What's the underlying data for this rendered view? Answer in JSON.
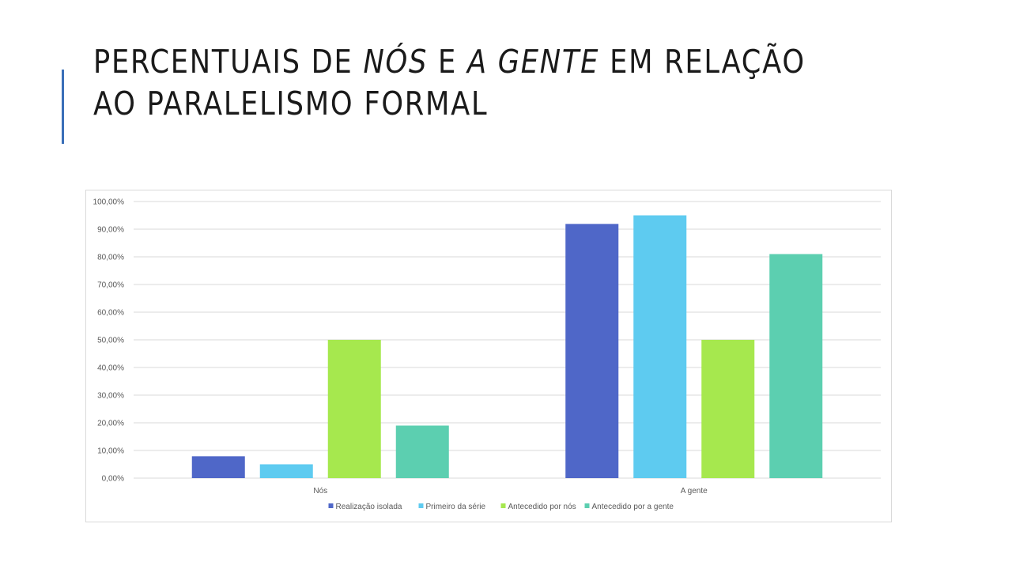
{
  "slide": {
    "title_parts": [
      {
        "text": "PERCENTUAIS DE ",
        "italic": false
      },
      {
        "text": "NÓS",
        "italic": true
      },
      {
        "text": " E ",
        "italic": false
      },
      {
        "text": "A GENTE",
        "italic": true
      },
      {
        "text": " EM RELAÇÃO AO PARALELISMO FORMAL",
        "italic": false
      }
    ]
  },
  "chart_data": {
    "type": "bar",
    "title": "",
    "xlabel": "",
    "ylabel": "",
    "categories": [
      "Nós",
      "A gente"
    ],
    "series": [
      {
        "name": "Realização isolada",
        "color": "#4f67c8",
        "values": [
          7.9,
          91.9
        ]
      },
      {
        "name": "Primeiro da série",
        "color": "#5ecbf0",
        "values": [
          5.0,
          95.0
        ]
      },
      {
        "name": "Antecedido por nós",
        "color": "#a6e84e",
        "values": [
          50.0,
          50.0
        ]
      },
      {
        "name": "Antecedido por a gente",
        "color": "#5ccfb0",
        "values": [
          19.0,
          81.0
        ]
      }
    ],
    "ylim": [
      0,
      100
    ],
    "yticks": [
      "0,00%",
      "10,00%",
      "20,00%",
      "30,00%",
      "40,00%",
      "50,00%",
      "60,00%",
      "70,00%",
      "80,00%",
      "90,00%",
      "100,00%"
    ],
    "grid": true,
    "legend_position": "bottom",
    "gridline_color": "#d9d9d9"
  }
}
